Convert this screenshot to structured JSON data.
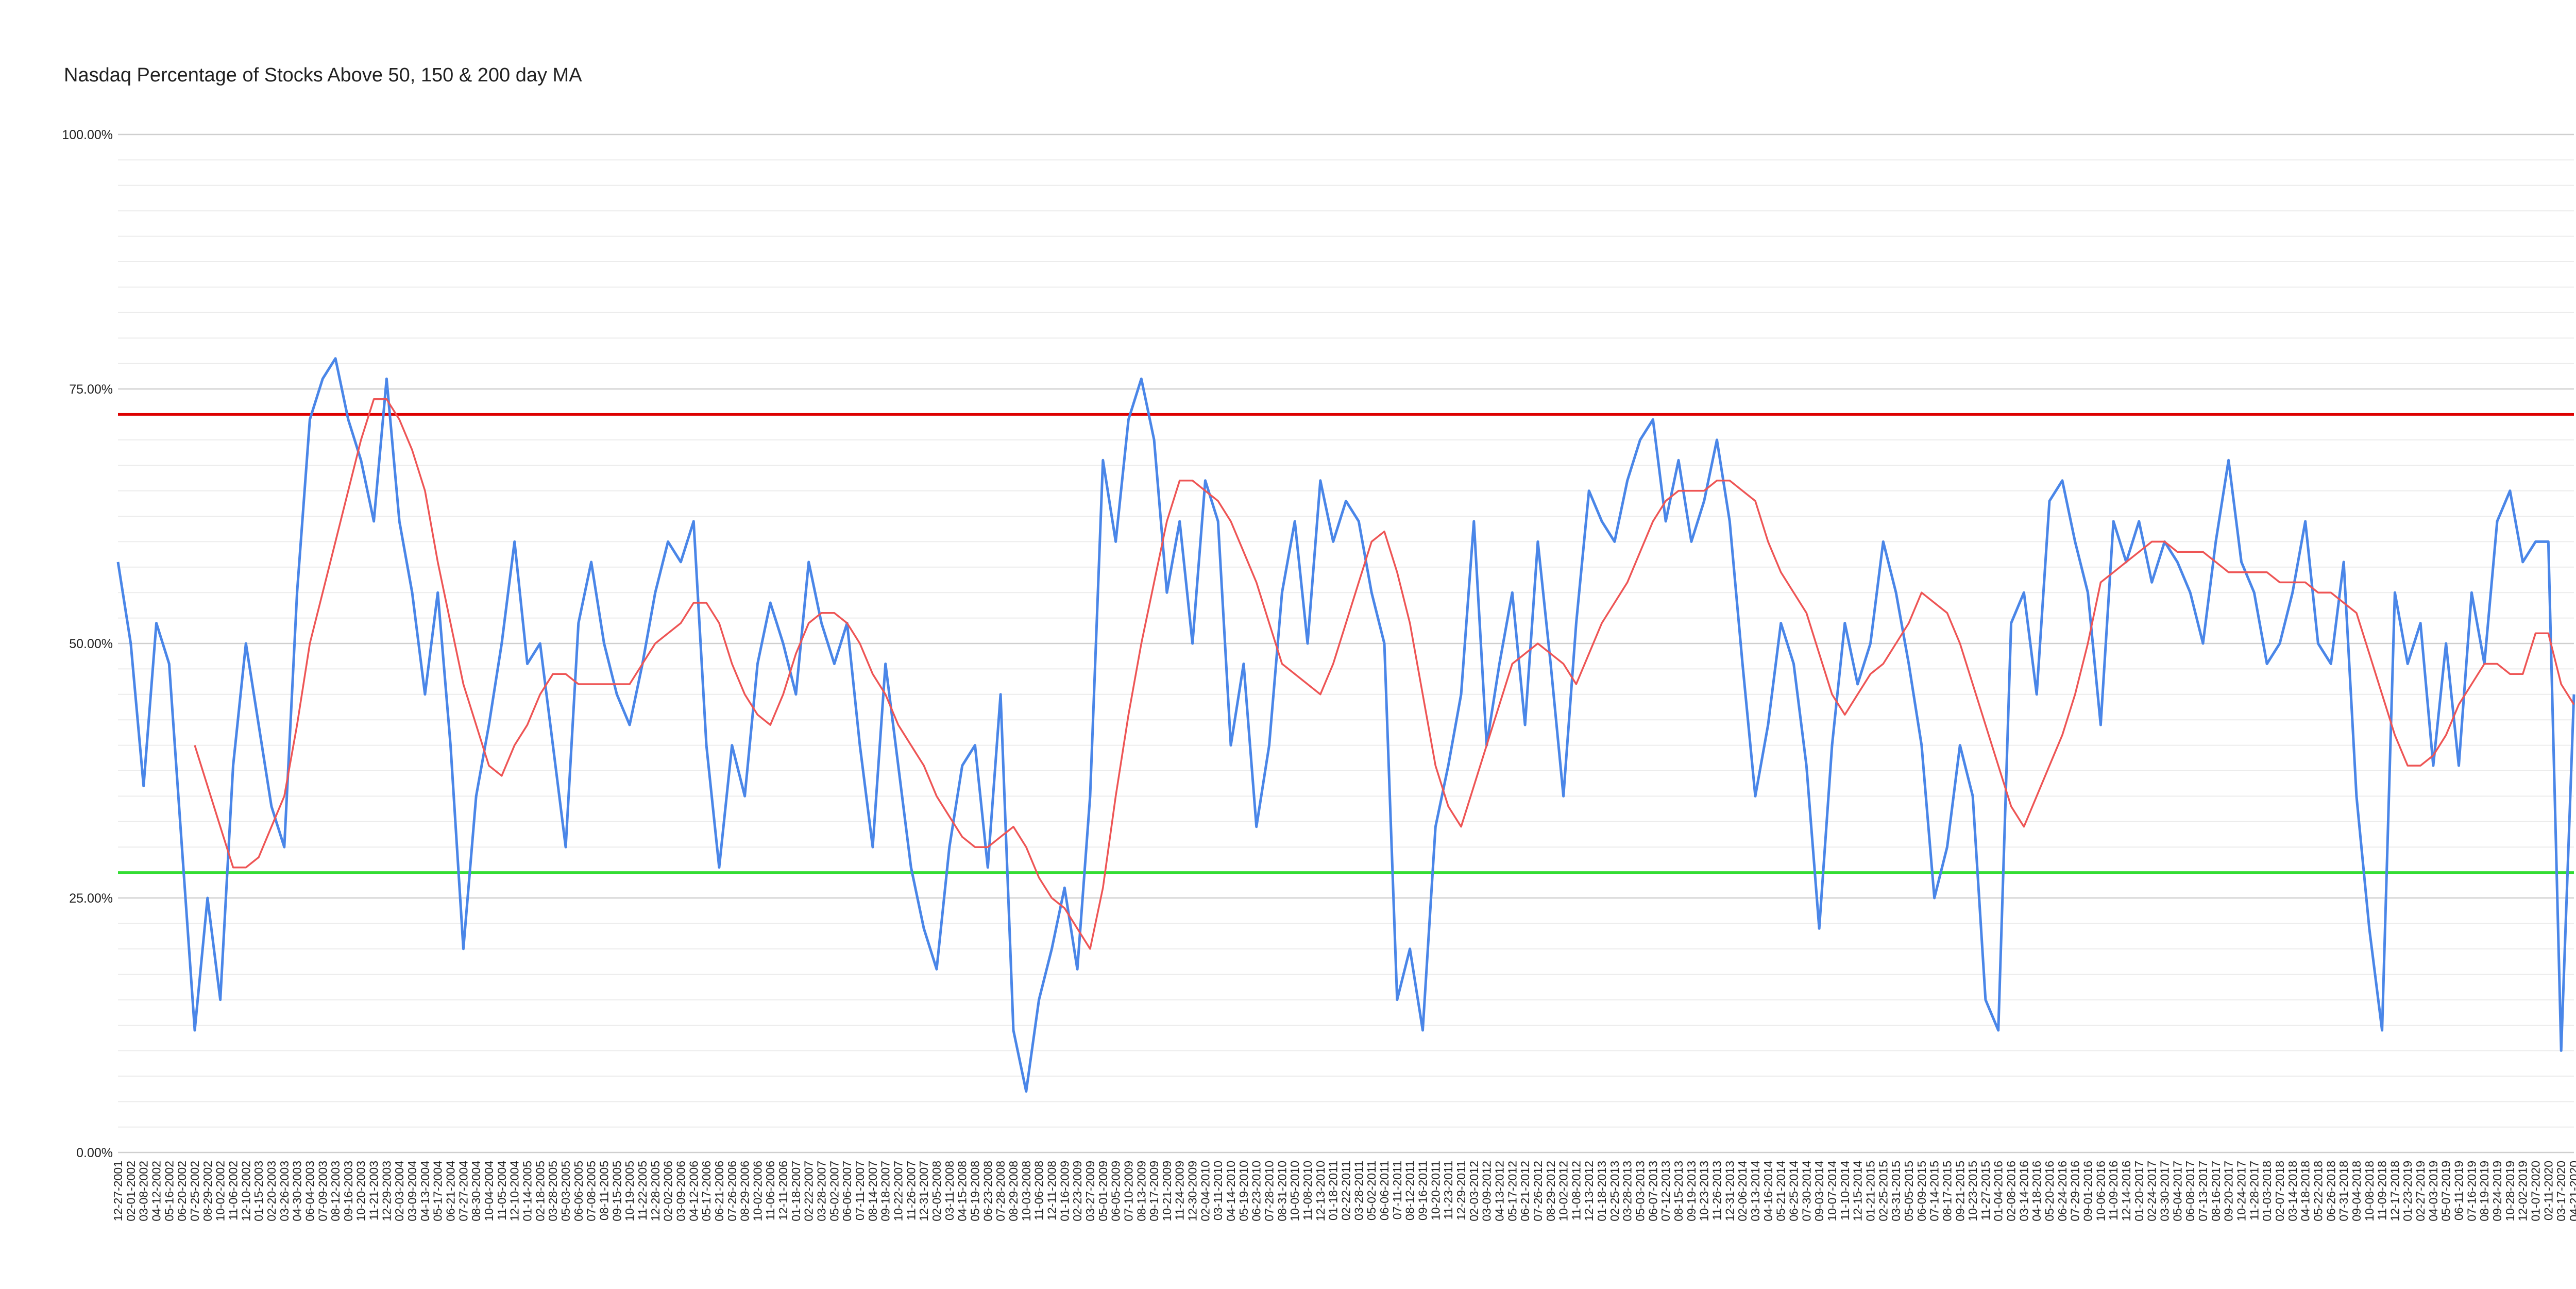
{
  "chart_data": {
    "type": "line",
    "title": "Nasdaq Percentage of Stocks Above 50, 150 & 200 day MA",
    "categories": [
      "12-27-2001",
      "02-01-2002",
      "03-08-2002",
      "04-12-2002",
      "05-16-2002",
      "06-20-2002",
      "07-25-2002",
      "08-29-2002",
      "10-02-2002",
      "11-06-2002",
      "12-10-2002",
      "01-15-2003",
      "02-20-2003",
      "03-26-2003",
      "04-30-2003",
      "06-04-2003",
      "07-09-2003",
      "08-12-2003",
      "09-16-2003",
      "10-20-2003",
      "11-21-2003",
      "12-29-2003",
      "02-03-2004",
      "03-09-2004",
      "04-13-2004",
      "05-17-2004",
      "06-21-2004",
      "07-27-2004",
      "08-30-2004",
      "10-04-2004",
      "11-05-2004",
      "12-10-2004",
      "01-14-2005",
      "02-18-2005",
      "03-28-2005",
      "05-03-2005",
      "06-06-2005",
      "07-08-2005",
      "08-11-2005",
      "09-15-2005",
      "10-19-2005",
      "11-22-2005",
      "12-28-2005",
      "02-02-2006",
      "03-09-2006",
      "04-12-2006",
      "05-17-2006",
      "06-21-2006",
      "07-26-2006",
      "08-29-2006",
      "10-02-2006",
      "11-06-2006",
      "12-11-2006",
      "01-18-2007",
      "02-22-2007",
      "03-28-2007",
      "05-02-2007",
      "06-06-2007",
      "07-11-2007",
      "08-14-2007",
      "09-18-2007",
      "10-22-2007",
      "11-26-2007",
      "12-31-2007",
      "02-05-2008",
      "03-11-2008",
      "04-15-2008",
      "05-19-2008",
      "06-23-2008",
      "07-28-2008",
      "08-29-2008",
      "10-03-2008",
      "11-06-2008",
      "12-11-2008",
      "01-16-2009",
      "02-23-2009",
      "03-27-2009",
      "05-01-2009",
      "06-05-2009",
      "07-10-2009",
      "08-13-2009",
      "09-17-2009",
      "10-21-2009",
      "11-24-2009",
      "12-30-2009",
      "02-04-2010",
      "03-11-2010",
      "04-14-2010",
      "05-19-2010",
      "06-23-2010",
      "07-28-2010",
      "08-31-2010",
      "10-05-2010",
      "11-08-2010",
      "12-13-2010",
      "01-18-2011",
      "02-22-2011",
      "03-28-2011",
      "05-02-2011",
      "06-06-2011",
      "07-11-2011",
      "08-12-2011",
      "09-16-2011",
      "10-20-2011",
      "11-23-2011",
      "12-29-2011",
      "02-03-2012",
      "03-09-2012",
      "04-13-2012",
      "05-17-2012",
      "06-21-2012",
      "07-26-2012",
      "08-29-2012",
      "10-02-2012",
      "11-08-2012",
      "12-13-2012",
      "01-18-2013",
      "02-25-2013",
      "03-28-2013",
      "05-03-2013",
      "06-07-2013",
      "07-12-2013",
      "08-15-2013",
      "09-19-2013",
      "10-23-2013",
      "11-26-2013",
      "12-31-2013",
      "02-06-2014",
      "03-13-2014",
      "04-16-2014",
      "05-21-2014",
      "06-25-2014",
      "07-30-2014",
      "09-03-2014",
      "10-07-2014",
      "11-10-2014",
      "12-15-2014",
      "01-21-2015",
      "02-25-2015",
      "03-31-2015",
      "05-05-2015",
      "06-09-2015",
      "07-14-2015",
      "08-17-2015",
      "09-21-2015",
      "10-23-2015",
      "11-27-2015",
      "01-04-2016",
      "02-08-2016",
      "03-14-2016",
      "04-18-2016",
      "05-20-2016",
      "06-24-2016",
      "07-29-2016",
      "09-01-2016",
      "10-06-2016",
      "11-09-2016",
      "12-14-2016",
      "01-20-2017",
      "02-24-2017",
      "03-30-2017",
      "05-04-2017",
      "06-08-2017",
      "07-13-2017",
      "08-16-2017",
      "09-20-2017",
      "10-24-2017",
      "11-28-2017",
      "01-03-2018",
      "02-07-2018",
      "03-14-2018",
      "04-18-2018",
      "05-22-2018",
      "06-26-2018",
      "07-31-2018",
      "09-04-2018",
      "10-08-2018",
      "11-09-2018",
      "12-17-2018",
      "01-23-2019",
      "02-27-2019",
      "04-03-2019",
      "05-07-2019",
      "06-11-2019",
      "07-16-2019",
      "08-19-2019",
      "09-24-2019",
      "10-28-2019",
      "12-02-2019",
      "01-07-2020",
      "02-11-2020",
      "03-17-2020",
      "04-21-2020"
    ],
    "series": [
      {
        "color": "#4a86e8",
        "values": [
          58,
          50,
          36,
          52,
          48,
          30,
          12,
          25,
          15,
          38,
          50,
          42,
          34,
          30,
          55,
          72,
          76,
          78,
          72,
          68,
          62,
          76,
          62,
          55,
          45,
          55,
          40,
          20,
          35,
          42,
          50,
          60,
          48,
          50,
          40,
          30,
          52,
          58,
          50,
          45,
          42,
          48,
          55,
          60,
          58,
          62,
          40,
          28,
          40,
          35,
          48,
          54,
          50,
          45,
          58,
          52,
          48,
          52,
          40,
          30,
          48,
          38,
          28,
          22,
          18,
          30,
          38,
          40,
          28,
          45,
          12,
          6,
          15,
          20,
          26,
          18,
          35,
          68,
          60,
          72,
          76,
          70,
          55,
          62,
          50,
          66,
          62,
          40,
          48,
          32,
          40,
          55,
          62,
          50,
          66,
          60,
          64,
          62,
          55,
          50,
          15,
          20,
          12,
          32,
          38,
          45,
          62,
          40,
          48,
          55,
          42,
          60,
          48,
          35,
          52,
          65,
          62,
          60,
          66,
          70,
          72,
          62,
          68,
          60,
          64,
          70,
          62,
          48,
          35,
          42,
          52,
          48,
          38,
          22,
          40,
          52,
          46,
          50,
          60,
          55,
          48,
          40,
          25,
          30,
          40,
          35,
          15,
          12,
          52,
          55,
          45,
          64,
          66,
          60,
          55,
          42,
          62,
          58,
          62,
          56,
          60,
          58,
          55,
          50,
          60,
          68,
          58,
          55,
          48,
          50,
          55,
          62,
          50,
          48,
          58,
          35,
          22,
          12,
          55,
          48,
          52,
          38,
          50,
          38,
          55,
          48,
          62,
          65,
          58,
          60,
          60,
          10,
          45
        ]
      },
      {
        "color": "#ee5555",
        "values": [
          null,
          null,
          null,
          null,
          null,
          null,
          40,
          36,
          32,
          28,
          28,
          29,
          32,
          35,
          42,
          50,
          55,
          60,
          65,
          70,
          74,
          74,
          72,
          69,
          65,
          58,
          52,
          46,
          42,
          38,
          37,
          40,
          42,
          45,
          47,
          47,
          46,
          46,
          46,
          46,
          46,
          48,
          50,
          51,
          52,
          54,
          54,
          52,
          48,
          45,
          43,
          42,
          45,
          49,
          52,
          53,
          53,
          52,
          50,
          47,
          45,
          42,
          40,
          38,
          35,
          33,
          31,
          30,
          30,
          31,
          32,
          30,
          27,
          25,
          24,
          22,
          20,
          26,
          35,
          43,
          50,
          56,
          62,
          66,
          66,
          65,
          64,
          62,
          59,
          56,
          52,
          48,
          47,
          46,
          45,
          48,
          52,
          56,
          60,
          61,
          57,
          52,
          45,
          38,
          34,
          32,
          36,
          40,
          44,
          48,
          49,
          50,
          49,
          48,
          46,
          49,
          52,
          54,
          56,
          59,
          62,
          64,
          65,
          65,
          65,
          66,
          66,
          65,
          64,
          60,
          57,
          55,
          53,
          49,
          45,
          43,
          45,
          47,
          48,
          50,
          52,
          55,
          54,
          53,
          50,
          46,
          42,
          38,
          34,
          32,
          35,
          38,
          41,
          45,
          50,
          56,
          57,
          58,
          59,
          60,
          60,
          59,
          59,
          59,
          58,
          57,
          57,
          57,
          57,
          56,
          56,
          56,
          55,
          55,
          54,
          53,
          49,
          45,
          41,
          38,
          38,
          39,
          41,
          44,
          46,
          48,
          48,
          47,
          47,
          51,
          51,
          46,
          44
        ]
      }
    ],
    "ylim": [
      0,
      100
    ],
    "yticks": [
      {
        "value": 0,
        "label": "0.00%"
      },
      {
        "value": 25,
        "label": "25.00%"
      },
      {
        "value": 50,
        "label": "50.00%"
      },
      {
        "value": 75,
        "label": "75.00%"
      },
      {
        "value": 100,
        "label": "100.00%"
      }
    ],
    "minor_yticks": [
      2.5,
      5,
      7.5,
      10,
      12.5,
      15,
      17.5,
      20,
      22.5,
      27.5,
      30,
      32.5,
      35,
      37.5,
      40,
      42.5,
      45,
      47.5,
      52.5,
      55,
      57.5,
      60,
      62.5,
      65,
      67.5,
      70,
      72.5,
      77.5,
      80,
      82.5,
      85,
      87.5,
      90,
      92.5,
      95,
      97.5
    ],
    "reference_lines": [
      {
        "value": 72.5,
        "color": "#dd0000"
      },
      {
        "value": 27.5,
        "color": "#33dd33"
      }
    ],
    "grid": true
  }
}
